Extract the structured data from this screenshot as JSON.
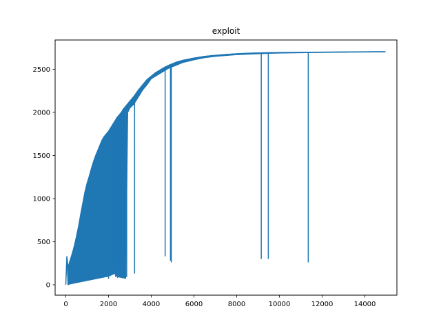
{
  "chart_data": {
    "type": "line",
    "title": "exploit",
    "xlabel": "",
    "ylabel": "",
    "xlim": [
      -500,
      15500
    ],
    "ylim": [
      -120,
      2840
    ],
    "x_ticks": [
      0,
      2000,
      4000,
      6000,
      8000,
      10000,
      12000,
      14000
    ],
    "y_ticks": [
      0,
      500,
      1000,
      1500,
      2000,
      2500
    ],
    "grid": false,
    "legend": "none",
    "colors": {
      "series": "#1f77b4",
      "axes": "#000000",
      "background": "#ffffff"
    },
    "series": [
      {
        "x": [
          0,
          50,
          100,
          200,
          300,
          400,
          500,
          600,
          700,
          800,
          900,
          1000,
          1100,
          1200,
          1300,
          1400,
          1500,
          1600,
          1700,
          1800,
          1900,
          2000,
          2100,
          2200,
          2300,
          2400,
          2500,
          2600,
          2700,
          2800,
          2900,
          3000,
          3200,
          3400,
          3600,
          3800,
          4000,
          4200,
          4400,
          4600,
          4800,
          5000,
          5200,
          5500,
          6000,
          6500,
          7000,
          7500,
          8000,
          8500,
          9000,
          9500,
          10000,
          10500,
          11000,
          11500,
          12000,
          12500,
          13000,
          13500,
          14000,
          14500,
          14950
        ],
        "y_min": [
          0,
          330,
          0,
          10,
          15,
          20,
          25,
          30,
          35,
          40,
          45,
          50,
          55,
          60,
          65,
          70,
          75,
          80,
          85,
          90,
          95,
          100,
          110,
          120,
          130,
          100,
          90,
          85,
          80,
          75,
          2000,
          2050,
          2100,
          2180,
          2260,
          2320,
          2390,
          2420,
          2450,
          2480,
          2510,
          2530,
          2550,
          2580,
          2610,
          2635,
          2650,
          2660,
          2670,
          2675,
          2680,
          2685,
          2688,
          2690,
          2692,
          2694,
          2695,
          2697,
          2698,
          2699,
          2700,
          2701,
          2702
        ],
        "y_max": [
          10,
          330,
          200,
          280,
          360,
          450,
          560,
          680,
          820,
          950,
          1080,
          1180,
          1260,
          1350,
          1430,
          1500,
          1560,
          1620,
          1680,
          1720,
          1750,
          1780,
          1820,
          1860,
          1900,
          1940,
          1970,
          2000,
          2040,
          2070,
          2100,
          2130,
          2190,
          2260,
          2320,
          2380,
          2420,
          2460,
          2490,
          2520,
          2545,
          2565,
          2585,
          2605,
          2630,
          2650,
          2662,
          2672,
          2680,
          2686,
          2690,
          2693,
          2695,
          2696,
          2697,
          2698,
          2699,
          2700,
          2701,
          2702,
          2703,
          2704,
          2704
        ]
      }
    ],
    "dips": [
      {
        "x": 2000,
        "to": 70
      },
      {
        "x": 2100,
        "to": 300
      },
      {
        "x": 2200,
        "to": 250
      },
      {
        "x": 2250,
        "to": 160
      },
      {
        "x": 2330,
        "to": 90
      },
      {
        "x": 2420,
        "to": 80
      },
      {
        "x": 2520,
        "to": 100
      },
      {
        "x": 2560,
        "to": 550
      },
      {
        "x": 2580,
        "to": 430
      },
      {
        "x": 2700,
        "to": 80
      },
      {
        "x": 2760,
        "to": 90
      },
      {
        "x": 2800,
        "to": 70
      },
      {
        "x": 2850,
        "to": 90
      },
      {
        "x": 3220,
        "to": 130
      },
      {
        "x": 4650,
        "to": 330
      },
      {
        "x": 4900,
        "to": 280
      },
      {
        "x": 4940,
        "to": 260
      },
      {
        "x": 9150,
        "to": 300
      },
      {
        "x": 9480,
        "to": 300
      },
      {
        "x": 11350,
        "to": 260
      }
    ]
  }
}
